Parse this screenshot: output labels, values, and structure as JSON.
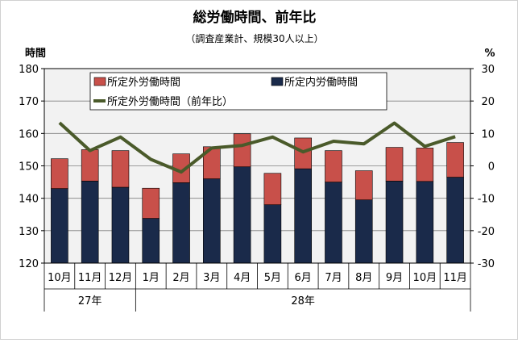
{
  "chart_data": {
    "type": "bar",
    "title": "総労働時間、前年比",
    "subtitle": "（調査産業計、規模30人以上）",
    "y_left_unit": "時間",
    "y_right_unit": "%",
    "ylim_left": [
      120,
      180
    ],
    "ylim_right": [
      -30,
      30
    ],
    "yticks_left": [
      "120",
      "130",
      "140",
      "150",
      "160",
      "170",
      "180"
    ],
    "yticks_right": [
      "-30",
      "-20",
      "-10",
      "0",
      "10",
      "20",
      "30"
    ],
    "categories": [
      "10月",
      "11月",
      "12月",
      "1月",
      "2月",
      "3月",
      "4月",
      "5月",
      "6月",
      "7月",
      "8月",
      "9月",
      "10月",
      "11月"
    ],
    "year_groups": [
      {
        "label": "27年",
        "start": 0,
        "count": 3
      },
      {
        "label": "28年",
        "start": 3,
        "count": 11
      }
    ],
    "series": [
      {
        "name": "所定内労働時間",
        "kind": "bar",
        "color": "#1a2a4a",
        "values": [
          143.0,
          145.3,
          143.4,
          133.8,
          144.8,
          146.0,
          149.7,
          138.0,
          149.1,
          145.0,
          139.5,
          145.3,
          145.2,
          146.5
        ]
      },
      {
        "name": "所定外労働時間",
        "kind": "bar",
        "color": "#c8504a",
        "values": [
          9.2,
          9.7,
          11.3,
          9.3,
          8.9,
          9.9,
          10.2,
          9.7,
          9.5,
          9.7,
          9.0,
          10.4,
          10.3,
          10.7
        ]
      },
      {
        "name": "所定外労働時間（前年比）",
        "kind": "line",
        "axis": "right",
        "color": "#4a5a2a",
        "values": [
          13.3,
          4.7,
          8.9,
          2.0,
          -1.9,
          5.5,
          6.3,
          8.9,
          4.3,
          7.6,
          6.8,
          13.2,
          6.0,
          9.0
        ]
      }
    ],
    "grid": true,
    "legend": "top"
  }
}
